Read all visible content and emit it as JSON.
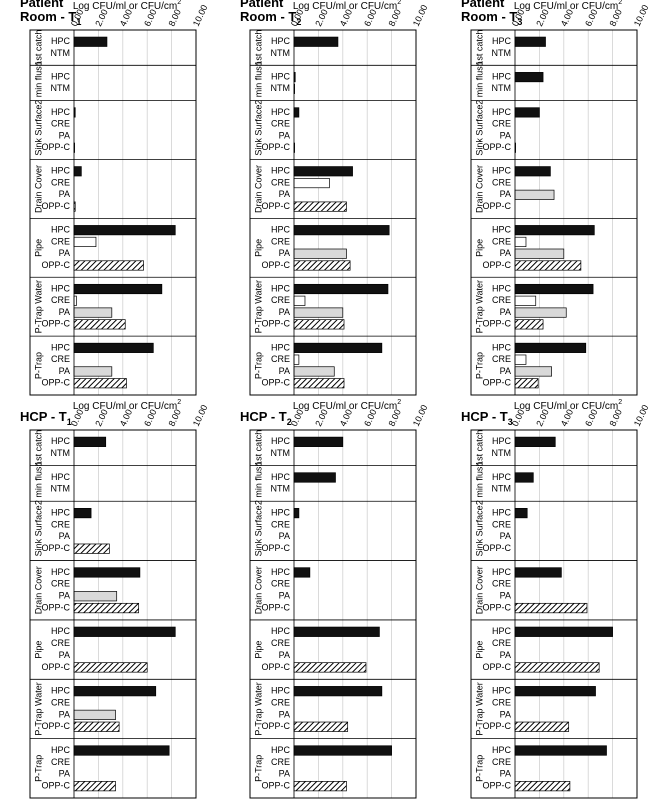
{
  "chart_data": [
    {
      "type": "bar",
      "title": [
        "Patient",
        "Room - T"
      ],
      "title_subscript": "1",
      "x_label": "Log CFU/ml or CFU/cm",
      "x_label_superscript": "2",
      "xlim": [
        0,
        10
      ],
      "xticks": [
        {
          "value": 0,
          "label": "0.00"
        },
        {
          "value": 2,
          "label": "2.00"
        },
        {
          "value": 4,
          "label": "4.00"
        },
        {
          "value": 6,
          "label": "6.00"
        },
        {
          "value": 8,
          "label": "8.00"
        },
        {
          "value": 10,
          "label": "10.00"
        }
      ],
      "grid": true,
      "colors": {
        "HPC": "#111111",
        "NTM": "#111111",
        "CRE": "#ffffff",
        "PA": "#d9d9d9",
        "OPP-C": "hatch"
      },
      "groups": [
        {
          "name": "1st catch",
          "categories": [
            "HPC",
            "NTM"
          ],
          "values": [
            2.7,
            null
          ]
        },
        {
          "name": "2 min flush",
          "categories": [
            "HPC",
            "NTM"
          ],
          "values": [
            null,
            null
          ]
        },
        {
          "name": "Sink Surface",
          "categories": [
            "HPC",
            "CRE",
            "PA",
            "OPP-C"
          ],
          "values": [
            0.1,
            null,
            null,
            0.05
          ]
        },
        {
          "name": "Drain Cover",
          "categories": [
            "HPC",
            "CRE",
            "PA",
            "OPP-C"
          ],
          "values": [
            0.6,
            null,
            null,
            0.1
          ]
        },
        {
          "name": "Pipe",
          "categories": [
            "HPC",
            "CRE",
            "PA",
            "OPP-C"
          ],
          "values": [
            8.3,
            1.8,
            null,
            5.7
          ]
        },
        {
          "name": "P-Trap Water",
          "categories": [
            "HPC",
            "CRE",
            "PA",
            "OPP-C"
          ],
          "values": [
            7.2,
            0.2,
            3.1,
            4.2
          ]
        },
        {
          "name": "P-Trap",
          "categories": [
            "HPC",
            "CRE",
            "PA",
            "OPP-C"
          ],
          "values": [
            6.5,
            null,
            3.1,
            4.3
          ]
        }
      ]
    },
    {
      "type": "bar",
      "title": [
        "Patient",
        "Room - T"
      ],
      "title_subscript": "2",
      "x_label": "Log CFU/ml or CFU/cm",
      "x_label_superscript": "2",
      "xlim": [
        0,
        10
      ],
      "xticks": [
        {
          "value": 0,
          "label": "0.00"
        },
        {
          "value": 2,
          "label": "2.00"
        },
        {
          "value": 4,
          "label": "4.00"
        },
        {
          "value": 6,
          "label": "6.00"
        },
        {
          "value": 8,
          "label": "8.00"
        },
        {
          "value": 10,
          "label": "10.00"
        }
      ],
      "grid": true,
      "colors": {
        "HPC": "#111111",
        "NTM": "#111111",
        "CRE": "#ffffff",
        "PA": "#d9d9d9",
        "OPP-C": "hatch"
      },
      "groups": [
        {
          "name": "1st catch",
          "categories": [
            "HPC",
            "NTM"
          ],
          "values": [
            3.6,
            null
          ]
        },
        {
          "name": "2 min flush",
          "categories": [
            "HPC",
            "NTM"
          ],
          "values": [
            0.1,
            0.05
          ]
        },
        {
          "name": "Sink Surface",
          "categories": [
            "HPC",
            "CRE",
            "PA",
            "OPP-C"
          ],
          "values": [
            0.4,
            null,
            null,
            0.05
          ]
        },
        {
          "name": "Drain Cover",
          "categories": [
            "HPC",
            "CRE",
            "PA",
            "OPP-C"
          ],
          "values": [
            4.8,
            2.9,
            null,
            4.3
          ]
        },
        {
          "name": "Pipe",
          "categories": [
            "HPC",
            "CRE",
            "PA",
            "OPP-C"
          ],
          "values": [
            7.8,
            null,
            4.3,
            4.6
          ]
        },
        {
          "name": "P-Trap Water",
          "categories": [
            "HPC",
            "CRE",
            "PA",
            "OPP-C"
          ],
          "values": [
            7.7,
            0.9,
            4.0,
            4.1
          ]
        },
        {
          "name": "P-Trap",
          "categories": [
            "HPC",
            "CRE",
            "PA",
            "OPP-C"
          ],
          "values": [
            7.2,
            0.4,
            3.3,
            4.1
          ]
        }
      ]
    },
    {
      "type": "bar",
      "title": [
        "Patient",
        "Room - T"
      ],
      "title_subscript": "3",
      "x_label": "Log CFU/ml or CFU/cm",
      "x_label_superscript": "2",
      "xlim": [
        0,
        10
      ],
      "xticks": [
        {
          "value": 0,
          "label": "0.00"
        },
        {
          "value": 2,
          "label": "2.00"
        },
        {
          "value": 4,
          "label": "4.00"
        },
        {
          "value": 6,
          "label": "6.00"
        },
        {
          "value": 8,
          "label": "8.00"
        },
        {
          "value": 10,
          "label": "10.00"
        }
      ],
      "grid": true,
      "colors": {
        "HPC": "#111111",
        "NTM": "#111111",
        "CRE": "#ffffff",
        "PA": "#d9d9d9",
        "OPP-C": "hatch"
      },
      "groups": [
        {
          "name": "1st catch",
          "categories": [
            "HPC",
            "NTM"
          ],
          "values": [
            2.5,
            null
          ]
        },
        {
          "name": "2 min flush",
          "categories": [
            "HPC",
            "NTM"
          ],
          "values": [
            2.3,
            null
          ]
        },
        {
          "name": "Sink Surface",
          "categories": [
            "HPC",
            "CRE",
            "PA",
            "OPP-C"
          ],
          "values": [
            2.0,
            null,
            null,
            0.05
          ]
        },
        {
          "name": "Drain Cover",
          "categories": [
            "HPC",
            "CRE",
            "PA",
            "OPP-C"
          ],
          "values": [
            2.9,
            null,
            3.2,
            null
          ]
        },
        {
          "name": "Pipe",
          "categories": [
            "HPC",
            "CRE",
            "PA",
            "OPP-C"
          ],
          "values": [
            6.5,
            0.9,
            4.0,
            5.4
          ]
        },
        {
          "name": "P-Trap Water",
          "categories": [
            "HPC",
            "CRE",
            "PA",
            "OPP-C"
          ],
          "values": [
            6.4,
            1.7,
            4.2,
            2.3
          ]
        },
        {
          "name": "P-Trap",
          "categories": [
            "HPC",
            "CRE",
            "PA",
            "OPP-C"
          ],
          "values": [
            5.8,
            0.9,
            3.0,
            1.9
          ]
        }
      ]
    },
    {
      "type": "bar",
      "title": [
        "HCP - T"
      ],
      "title_subscript": "1",
      "x_label": "Log CFU/ml or CFU/cm",
      "x_label_superscript": "2",
      "xlim": [
        0,
        10
      ],
      "xticks": [
        {
          "value": 0,
          "label": "0.00"
        },
        {
          "value": 2,
          "label": "2.00"
        },
        {
          "value": 4,
          "label": "4.00"
        },
        {
          "value": 6,
          "label": "6.00"
        },
        {
          "value": 8,
          "label": "8.00"
        },
        {
          "value": 10,
          "label": "10.00"
        }
      ],
      "grid": true,
      "colors": {
        "HPC": "#111111",
        "NTM": "#111111",
        "CRE": "#ffffff",
        "PA": "#d9d9d9",
        "OPP-C": "hatch"
      },
      "groups": [
        {
          "name": "1st catch",
          "categories": [
            "HPC",
            "NTM"
          ],
          "values": [
            2.6,
            null
          ]
        },
        {
          "name": "2 min flush",
          "categories": [
            "HPC",
            "NTM"
          ],
          "values": [
            null,
            null
          ]
        },
        {
          "name": "Sink Surface",
          "categories": [
            "HPC",
            "CRE",
            "PA",
            "OPP-C"
          ],
          "values": [
            1.4,
            null,
            null,
            2.9
          ]
        },
        {
          "name": "Drain Cover",
          "categories": [
            "HPC",
            "CRE",
            "PA",
            "OPP-C"
          ],
          "values": [
            5.4,
            null,
            3.5,
            5.3
          ]
        },
        {
          "name": "Pipe",
          "categories": [
            "HPC",
            "CRE",
            "PA",
            "OPP-C"
          ],
          "values": [
            8.3,
            null,
            null,
            6.0
          ]
        },
        {
          "name": "P-Trap Water",
          "categories": [
            "HPC",
            "CRE",
            "PA",
            "OPP-C"
          ],
          "values": [
            6.7,
            null,
            3.4,
            3.7
          ]
        },
        {
          "name": "P-Trap",
          "categories": [
            "HPC",
            "CRE",
            "PA",
            "OPP-C"
          ],
          "values": [
            7.8,
            null,
            null,
            3.4
          ]
        }
      ]
    },
    {
      "type": "bar",
      "title": [
        "HCP - T"
      ],
      "title_subscript": "2",
      "x_label": "Log CFU/ml or CFU/cm",
      "x_label_superscript": "2",
      "xlim": [
        0,
        10
      ],
      "xticks": [
        {
          "value": 0,
          "label": "0.00"
        },
        {
          "value": 2,
          "label": "2.00"
        },
        {
          "value": 4,
          "label": "4.00"
        },
        {
          "value": 6,
          "label": "6.00"
        },
        {
          "value": 8,
          "label": "8.00"
        },
        {
          "value": 10,
          "label": "10.00"
        }
      ],
      "grid": true,
      "colors": {
        "HPC": "#111111",
        "NTM": "#111111",
        "CRE": "#ffffff",
        "PA": "#d9d9d9",
        "OPP-C": "hatch"
      },
      "groups": [
        {
          "name": "1st catch",
          "categories": [
            "HPC",
            "NTM"
          ],
          "values": [
            4.0,
            null
          ]
        },
        {
          "name": "2 min flush",
          "categories": [
            "HPC",
            "NTM"
          ],
          "values": [
            3.4,
            null
          ]
        },
        {
          "name": "Sink Surface",
          "categories": [
            "HPC",
            "CRE",
            "PA",
            "OPP-C"
          ],
          "values": [
            0.4,
            null,
            null,
            null
          ]
        },
        {
          "name": "Drain Cover",
          "categories": [
            "HPC",
            "CRE",
            "PA",
            "OPP-C"
          ],
          "values": [
            1.3,
            null,
            null,
            null
          ]
        },
        {
          "name": "Pipe",
          "categories": [
            "HPC",
            "CRE",
            "PA",
            "OPP-C"
          ],
          "values": [
            7.0,
            null,
            null,
            5.9
          ]
        },
        {
          "name": "P-Trap Water",
          "categories": [
            "HPC",
            "CRE",
            "PA",
            "OPP-C"
          ],
          "values": [
            7.2,
            null,
            null,
            4.4
          ]
        },
        {
          "name": "P-Trap",
          "categories": [
            "HPC",
            "CRE",
            "PA",
            "OPP-C"
          ],
          "values": [
            8.0,
            null,
            null,
            4.3
          ]
        }
      ]
    },
    {
      "type": "bar",
      "title": [
        "HCP - T"
      ],
      "title_subscript": "3",
      "x_label": "Log CFU/ml or CFU/cm",
      "x_label_superscript": "2",
      "xlim": [
        0,
        10
      ],
      "xticks": [
        {
          "value": 0,
          "label": "0.00"
        },
        {
          "value": 2,
          "label": "2.00"
        },
        {
          "value": 4,
          "label": "4.00"
        },
        {
          "value": 6,
          "label": "6.00"
        },
        {
          "value": 8,
          "label": "8.00"
        },
        {
          "value": 10,
          "label": "10.00"
        }
      ],
      "grid": true,
      "colors": {
        "HPC": "#111111",
        "NTM": "#111111",
        "CRE": "#ffffff",
        "PA": "#d9d9d9",
        "OPP-C": "hatch"
      },
      "groups": [
        {
          "name": "1st catch",
          "categories": [
            "HPC",
            "NTM"
          ],
          "values": [
            3.3,
            null
          ]
        },
        {
          "name": "2 min flush",
          "categories": [
            "HPC",
            "NTM"
          ],
          "values": [
            1.5,
            null
          ]
        },
        {
          "name": "Sink Surface",
          "categories": [
            "HPC",
            "CRE",
            "PA",
            "OPP-C"
          ],
          "values": [
            1.0,
            null,
            null,
            null
          ]
        },
        {
          "name": "Drain Cover",
          "categories": [
            "HPC",
            "CRE",
            "PA",
            "OPP-C"
          ],
          "values": [
            3.8,
            null,
            null,
            5.9
          ]
        },
        {
          "name": "Pipe",
          "categories": [
            "HPC",
            "CRE",
            "PA",
            "OPP-C"
          ],
          "values": [
            8.0,
            null,
            null,
            6.9
          ]
        },
        {
          "name": "P-Trap Water",
          "categories": [
            "HPC",
            "CRE",
            "PA",
            "OPP-C"
          ],
          "values": [
            6.6,
            null,
            null,
            4.4
          ]
        },
        {
          "name": "P-Trap",
          "categories": [
            "HPC",
            "CRE",
            "PA",
            "OPP-C"
          ],
          "values": [
            7.5,
            null,
            null,
            4.5
          ]
        }
      ]
    }
  ]
}
